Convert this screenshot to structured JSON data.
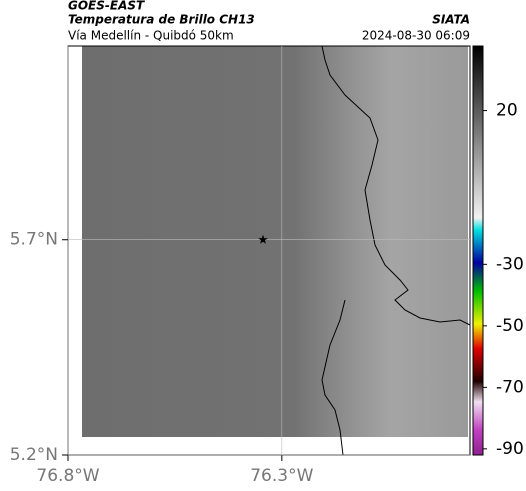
{
  "header": {
    "satellite": "GOES-EAST",
    "product": "Temperatura de Brillo CH13",
    "source": "SIATA",
    "route": "Vía Medellín - Quibdó 50km",
    "datetime": "2024-08-30 06:09"
  },
  "map": {
    "xlim": [
      -76.8,
      -75.86
    ],
    "ylim": [
      5.2,
      6.15
    ],
    "xticks": [
      {
        "value": -76.8,
        "label": "76.8°W"
      },
      {
        "value": -76.3,
        "label": "76.3°W"
      }
    ],
    "yticks": [
      {
        "value": 5.7,
        "label": "5.7°N"
      },
      {
        "value": 5.2,
        "label": "5.2°N"
      }
    ],
    "marker": {
      "lon": -76.344,
      "lat": 5.7
    }
  },
  "colorbar": {
    "lim": [
      -92,
      41
    ],
    "ticks": [
      20,
      -30,
      -50,
      -70,
      -90
    ]
  }
}
